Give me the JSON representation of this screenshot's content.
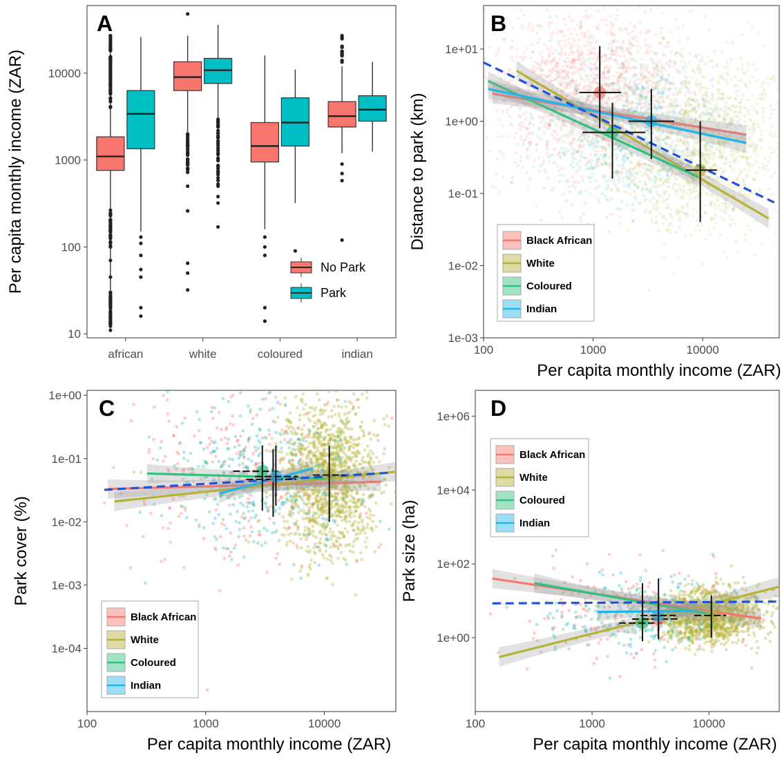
{
  "chart_data": [
    {
      "panel": "A",
      "type": "box",
      "ylabel": "Per capita monthly income (ZAR)",
      "yscale": "log10",
      "ylim": [
        9,
        60000
      ],
      "yticks": [
        "10",
        "100",
        "1000",
        "10000"
      ],
      "categories": [
        "african",
        "white",
        "coloured",
        "indian"
      ],
      "legend": {
        "position": "bottom-right",
        "entries": [
          "No Park",
          "Park"
        ]
      },
      "colors": {
        "No Park": "#f8766d",
        "Park": "#00bfc4"
      },
      "series": [
        {
          "name": "No Park",
          "boxes": [
            {
              "q1": 760,
              "median": 1100,
              "q3": 1850,
              "whisk_lo": 11,
              "whisk_hi": 27000,
              "outliers_lo": [
                11,
                14,
                20,
                30,
                45,
                70,
                100,
                150,
                200
              ],
              "outliers_hi": [
                6000,
                9000,
                13000,
                20000,
                27000
              ]
            },
            {
              "q1": 6300,
              "median": 9000,
              "q3": 13500,
              "whisk_lo": 2100,
              "whisk_hi": 27000,
              "outliers_lo": [
                32,
                50,
                65,
                260,
                500,
                800,
                1200,
                1700,
                2000
              ],
              "outliers_hi": [
                48000
              ]
            },
            {
              "q1": 950,
              "median": 1450,
              "q3": 2700,
              "whisk_lo": 160,
              "whisk_hi": 16000,
              "outliers_lo": [
                14,
                20,
                80,
                100,
                130
              ]
            },
            {
              "q1": 2400,
              "median": 3200,
              "q3": 4700,
              "whisk_lo": 1200,
              "whisk_hi": 12000,
              "outliers_lo": [
                120,
                580,
                700,
                900
              ],
              "outliers_hi": [
                14000,
                16000,
                20000,
                27000
              ]
            }
          ]
        },
        {
          "name": "Park",
          "boxes": [
            {
              "q1": 1350,
              "median": 3400,
              "q3": 6300,
              "whisk_lo": 150,
              "whisk_hi": 26000,
              "outliers_lo": [
                16,
                20,
                45,
                55,
                80,
                110,
                130
              ]
            },
            {
              "q1": 7600,
              "median": 10800,
              "q3": 14800,
              "whisk_lo": 3000,
              "whisk_hi": 36000,
              "outliers_lo": [
                170,
                320,
                380,
                500,
                800,
                1200,
                1800,
                2400
              ]
            },
            {
              "q1": 1450,
              "median": 2700,
              "q3": 5200,
              "whisk_lo": 320,
              "whisk_hi": 11000,
              "outliers_lo": [
                90
              ]
            },
            {
              "q1": 2800,
              "median": 3800,
              "q3": 5500,
              "whisk_lo": 1250,
              "whisk_hi": 13500,
              "outliers_lo": []
            }
          ]
        }
      ]
    },
    {
      "panel": "B",
      "type": "scatter",
      "xlabel": "Per capita monthly income (ZAR)",
      "ylabel": "Distance to park (km)",
      "xscale": "log10",
      "yscale": "log10",
      "xlim": [
        100,
        50000
      ],
      "ylim": [
        0.001,
        40
      ],
      "xticks": [
        "100",
        "1000",
        "10000"
      ],
      "yticks": [
        "1e-03",
        "1e-02",
        "1e-01",
        "1e+00",
        "1e+01"
      ],
      "legend": {
        "position": "bottom-left",
        "entries": [
          "Black African",
          "White",
          "Coloured",
          "Indian"
        ]
      },
      "colors": {
        "Black African": "#f8766d",
        "White": "#b5b235",
        "Coloured": "#2ec27e",
        "Indian": "#22b5e8",
        "overall": "#2152d9"
      },
      "fits": [
        {
          "name": "Black African",
          "x": [
            120,
            25000
          ],
          "y": [
            2.4,
            0.65
          ]
        },
        {
          "name": "White",
          "x": [
            200,
            40000
          ],
          "y": [
            5.0,
            0.045
          ]
        },
        {
          "name": "Coloured",
          "x": [
            110,
            9000
          ],
          "y": [
            3.6,
            0.17
          ]
        },
        {
          "name": "Indian",
          "x": [
            110,
            25000
          ],
          "y": [
            2.8,
            0.5
          ]
        },
        {
          "name": "overall",
          "x": [
            100,
            45000
          ],
          "y": [
            6.5,
            0.075
          ]
        }
      ],
      "means": [
        {
          "name": "Black African",
          "x": 1150,
          "y": 2.5,
          "x_err": [
            750,
            1800
          ],
          "y_err": [
            0.8,
            11
          ]
        },
        {
          "name": "Coloured",
          "x": 1500,
          "y": 0.7,
          "x_err": [
            800,
            3000
          ],
          "y_err": [
            0.16,
            1.8
          ]
        },
        {
          "name": "Indian",
          "x": 3400,
          "y": 1.0,
          "x_err": [
            2100,
            5500
          ],
          "y_err": [
            0.3,
            2.8
          ]
        },
        {
          "name": "White",
          "x": 9500,
          "y": 0.21,
          "x_err": [
            7000,
            13500
          ],
          "y_err": [
            0.04,
            1.0
          ]
        }
      ],
      "clouds": [
        {
          "name": "Black African",
          "center": [
            900,
            2.5
          ],
          "spread": [
            0.45,
            0.55
          ],
          "n": 1400
        },
        {
          "name": "White",
          "center": [
            9000,
            0.5
          ],
          "spread": [
            0.4,
            0.6
          ],
          "n": 1400
        },
        {
          "name": "Coloured",
          "center": [
            1500,
            0.6
          ],
          "spread": [
            0.4,
            0.55
          ],
          "n": 500
        },
        {
          "name": "Indian",
          "center": [
            3000,
            0.9
          ],
          "spread": [
            0.35,
            0.5
          ],
          "n": 400
        }
      ]
    },
    {
      "panel": "C",
      "type": "scatter",
      "xlabel": "Per capita monthly income (ZAR)",
      "ylabel": "Park cover (%)",
      "xscale": "log10",
      "yscale": "log10",
      "xlim": [
        100,
        40000
      ],
      "ylim": [
        1e-05,
        1.2
      ],
      "xticks": [
        "100",
        "1000",
        "10000"
      ],
      "yticks": [
        "1e-04",
        "1e-03",
        "1e-02",
        "1e-01",
        "1e+00"
      ],
      "legend": {
        "position": "bottom-left",
        "entries": [
          "Black African",
          "White",
          "Coloured",
          "Indian"
        ]
      },
      "colors": {
        "Black African": "#f8766d",
        "White": "#b5b235",
        "Coloured": "#2ec27e",
        "Indian": "#22b5e8",
        "overall": "#2152d9"
      },
      "fits": [
        {
          "name": "Black African",
          "x": [
            150,
            30000
          ],
          "y": [
            0.033,
            0.043
          ]
        },
        {
          "name": "White",
          "x": [
            170,
            40000
          ],
          "y": [
            0.021,
            0.062
          ]
        },
        {
          "name": "Coloured",
          "x": [
            320,
            12000
          ],
          "y": [
            0.058,
            0.048
          ]
        },
        {
          "name": "Indian",
          "x": [
            1300,
            8000
          ],
          "y": [
            0.028,
            0.07
          ]
        },
        {
          "name": "overall",
          "x": [
            140,
            37000
          ],
          "y": [
            0.032,
            0.06
          ]
        }
      ],
      "means": [
        {
          "name": "Black African",
          "x": 3700,
          "y": 0.047,
          "x_err": [
            2200,
            5800
          ],
          "y_err": [
            0.012,
            0.14
          ]
        },
        {
          "name": "Coloured",
          "x": 3000,
          "y": 0.063,
          "x_err": [
            1700,
            4200
          ],
          "y_err": [
            0.015,
            0.16
          ]
        },
        {
          "name": "Indian",
          "x": 3900,
          "y": 0.052,
          "x_err": [
            2600,
            6000
          ],
          "y_err": [
            0.018,
            0.16
          ]
        },
        {
          "name": "White",
          "x": 11000,
          "y": 0.055,
          "x_err": [
            8000,
            15000
          ],
          "y_err": [
            0.01,
            0.16
          ]
        }
      ],
      "clouds": [
        {
          "name": "Black African",
          "center": [
            2000,
            0.05
          ],
          "spread": [
            0.5,
            0.7
          ],
          "n": 260
        },
        {
          "name": "White",
          "center": [
            11000,
            0.05
          ],
          "spread": [
            0.2,
            0.6
          ],
          "n": 1400
        },
        {
          "name": "Coloured",
          "center": [
            2500,
            0.05
          ],
          "spread": [
            0.4,
            0.6
          ],
          "n": 180
        },
        {
          "name": "Indian",
          "center": [
            3500,
            0.05
          ],
          "spread": [
            0.35,
            0.6
          ],
          "n": 160
        }
      ]
    },
    {
      "panel": "D",
      "type": "scatter",
      "xlabel": "Per capita monthly income (ZAR)",
      "ylabel": "Park size (ha)",
      "xscale": "log10",
      "yscale": "log10",
      "xlim": [
        100,
        40000
      ],
      "ylim": [
        0.01,
        5000000
      ],
      "xticks": [
        "100",
        "1000",
        "10000"
      ],
      "yticks": [
        "1e+00",
        "1e+02",
        "1e+04",
        "1e+06"
      ],
      "legend": {
        "position": "top-left",
        "entries": [
          "Black African",
          "White",
          "Coloured",
          "Indian"
        ]
      },
      "colors": {
        "Black African": "#f8766d",
        "White": "#b5b235",
        "Coloured": "#2ec27e",
        "Indian": "#22b5e8",
        "overall": "#2152d9"
      },
      "fits": [
        {
          "name": "Black African",
          "x": [
            140,
            28000
          ],
          "y": [
            40,
            3.3
          ]
        },
        {
          "name": "White",
          "x": [
            160,
            40000
          ],
          "y": [
            0.3,
            24
          ]
        },
        {
          "name": "Coloured",
          "x": [
            320,
            11000
          ],
          "y": [
            30,
            4.2
          ]
        },
        {
          "name": "Indian",
          "x": [
            1100,
            8000
          ],
          "y": [
            5.0,
            5.3
          ]
        },
        {
          "name": "overall",
          "x": [
            140,
            38000
          ],
          "y": [
            8.5,
            9.5
          ]
        }
      ],
      "means": [
        {
          "name": "Coloured",
          "x": 2700,
          "y": 2.5,
          "x_err": [
            1700,
            4000
          ],
          "y_err": [
            0.8,
            30
          ]
        },
        {
          "name": "Black African",
          "x": 3700,
          "y": 3.2,
          "x_err": [
            2200,
            5500
          ],
          "y_err": [
            0.9,
            40
          ]
        },
        {
          "name": "Indian",
          "x": 3700,
          "y": 4.0,
          "x_err": [
            2600,
            5200
          ],
          "y_err": [
            1.0,
            8
          ]
        },
        {
          "name": "White",
          "x": 10500,
          "y": 4.0,
          "x_err": [
            7500,
            14000
          ],
          "y_err": [
            1.0,
            14
          ]
        }
      ],
      "clouds": [
        {
          "name": "Black African",
          "center": [
            2000,
            5
          ],
          "spread": [
            0.5,
            0.6
          ],
          "n": 200
        },
        {
          "name": "White",
          "center": [
            10000,
            4
          ],
          "spread": [
            0.22,
            0.35
          ],
          "n": 1400
        },
        {
          "name": "Coloured",
          "center": [
            2500,
            4
          ],
          "spread": [
            0.4,
            0.5
          ],
          "n": 120
        },
        {
          "name": "Indian",
          "center": [
            3500,
            4
          ],
          "spread": [
            0.35,
            0.5
          ],
          "n": 120
        }
      ]
    }
  ]
}
